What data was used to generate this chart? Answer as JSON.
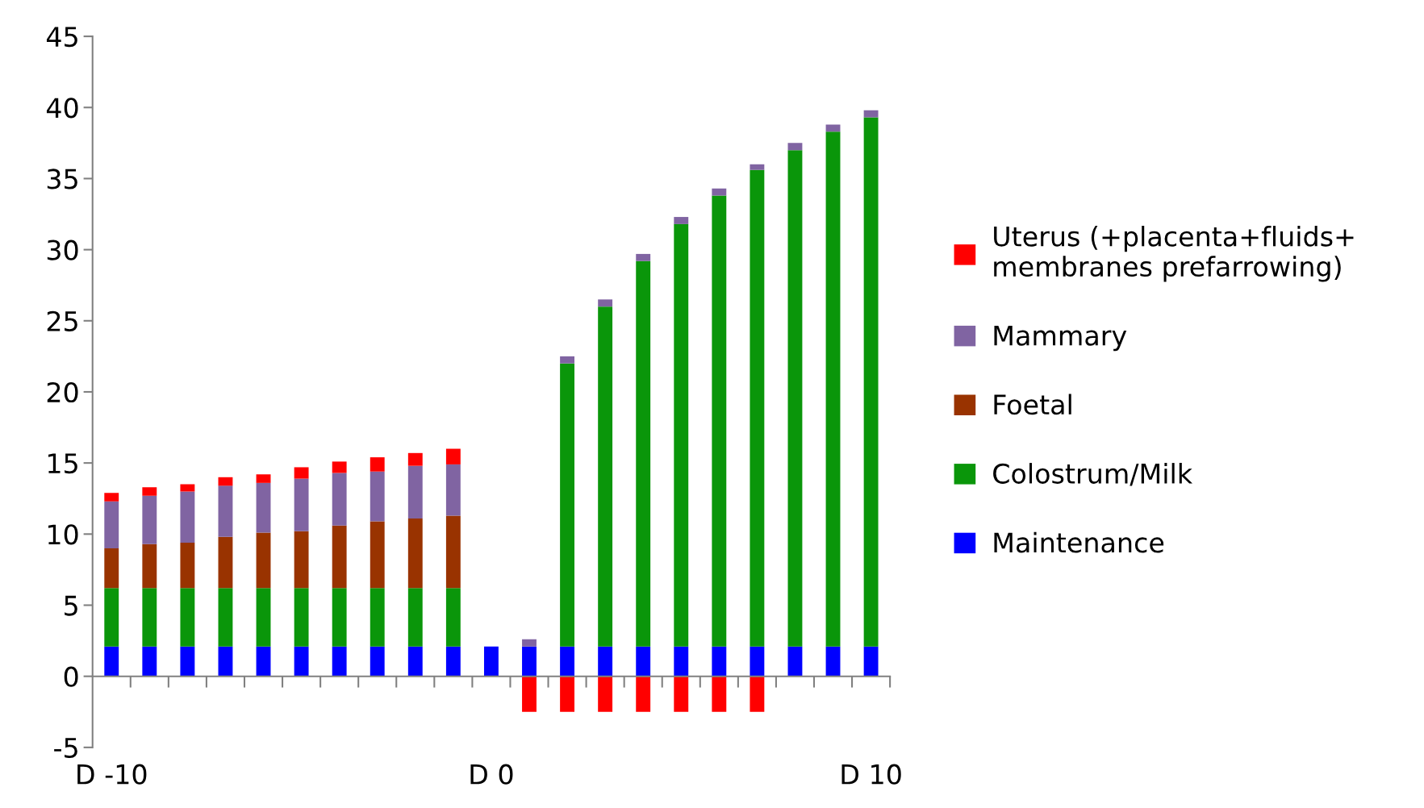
{
  "chart_data": {
    "type": "bar",
    "stacked": true,
    "categories": [
      "D -10",
      null,
      null,
      null,
      null,
      null,
      null,
      null,
      null,
      null,
      "D 0",
      null,
      null,
      null,
      null,
      null,
      null,
      null,
      null,
      null,
      "D 10"
    ],
    "series": [
      {
        "name": "Maintenance",
        "color": "#0000ff",
        "values": [
          2.1,
          2.1,
          2.1,
          2.1,
          2.1,
          2.1,
          2.1,
          2.1,
          2.1,
          2.1,
          2.1,
          2.1,
          2.1,
          2.1,
          2.1,
          2.1,
          2.1,
          2.1,
          2.1,
          2.1,
          2.1
        ]
      },
      {
        "name": "Colostrum/Milk",
        "color": "#0a960a",
        "values": [
          4.1,
          4.1,
          4.1,
          4.1,
          4.1,
          4.1,
          4.1,
          4.1,
          4.1,
          4.1,
          null,
          null,
          19.9,
          23.9,
          27.1,
          29.7,
          31.7,
          33.5,
          34.9,
          36.2,
          37.2
        ]
      },
      {
        "name": "Foetal",
        "color": "#993300",
        "values": [
          2.8,
          3.1,
          3.2,
          3.6,
          3.9,
          4.0,
          4.4,
          4.7,
          4.9,
          5.1,
          null,
          null,
          null,
          null,
          null,
          null,
          null,
          null,
          null,
          null,
          null
        ]
      },
      {
        "name": "Mammary",
        "color": "#8064a2",
        "values": [
          3.3,
          3.4,
          3.6,
          3.6,
          3.5,
          3.7,
          3.7,
          3.5,
          3.7,
          3.6,
          null,
          0.5,
          0.5,
          0.5,
          0.5,
          0.5,
          0.5,
          0.4,
          0.5,
          0.5,
          0.5
        ]
      },
      {
        "name": "Uterus (+placenta+fluids+\nmembranes prefarrowing)",
        "color": "#ff0000",
        "values": [
          0.6,
          0.6,
          0.5,
          0.6,
          0.6,
          0.8,
          0.8,
          1.0,
          0.9,
          1.1,
          null,
          -2.5,
          -2.5,
          -2.5,
          -2.5,
          -2.5,
          -2.5,
          -2.5,
          null,
          null,
          null
        ]
      }
    ],
    "ylim": [
      -5,
      45
    ],
    "yticks": [
      -5,
      0,
      5,
      10,
      15,
      20,
      25,
      30,
      35,
      40,
      45
    ],
    "legend": "right"
  }
}
